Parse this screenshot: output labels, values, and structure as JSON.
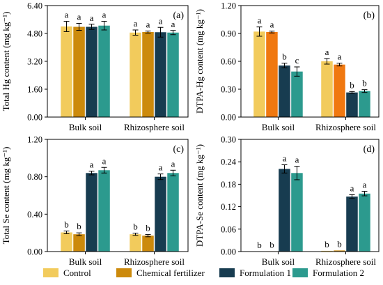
{
  "colors": {
    "Control": "#f2cb5c",
    "Chemical fertilizer": "#cc8a0c",
    "Formulation 1": "#173c50",
    "Formulation 2": "#2c9a8e",
    "Chemical fertilizer (b)": "#f07810"
  },
  "legend": {
    "items": [
      "Control",
      "Chemical fertilizer",
      "Formulation 1",
      "Formulation 2"
    ]
  },
  "chart_data": [
    {
      "type": "bar",
      "panel": "(a)",
      "ylabel": "Total Hg content (mg kg⁻¹)",
      "ylim": [
        0,
        6.4
      ],
      "yticks": [
        "0.00",
        "1.60",
        "3.20",
        "4.80",
        "6.40"
      ],
      "categories": [
        "Bulk soil",
        "Rhizosphere soil"
      ],
      "series": [
        {
          "name": "Control",
          "values": [
            5.2,
            4.85
          ],
          "errors": [
            0.3,
            0.15
          ],
          "letters": [
            "a",
            "a"
          ]
        },
        {
          "name": "Chemical fertilizer",
          "values": [
            5.18,
            4.88
          ],
          "errors": [
            0.2,
            0.06
          ],
          "letters": [
            "a",
            "a"
          ]
        },
        {
          "name": "Formulation 1",
          "values": [
            5.18,
            4.87
          ],
          "errors": [
            0.15,
            0.28
          ],
          "letters": [
            "a",
            "a"
          ]
        },
        {
          "name": "Formulation 2",
          "values": [
            5.25,
            4.85
          ],
          "errors": [
            0.25,
            0.12
          ],
          "letters": [
            "a",
            "a"
          ]
        }
      ]
    },
    {
      "type": "bar",
      "panel": "(b)",
      "ylabel": "DTPA-Hg content (mg kg⁻¹)",
      "ylim": [
        0,
        1.2
      ],
      "yticks": [
        "0.00",
        "0.30",
        "0.60",
        "0.90",
        "1.20"
      ],
      "categories": [
        "Bulk soil",
        "Rhizosphere soil"
      ],
      "series": [
        {
          "name": "Control",
          "values": [
            0.92,
            0.6
          ],
          "errors": [
            0.05,
            0.03
          ],
          "letters": [
            "a",
            "a"
          ]
        },
        {
          "name": "Chemical fertilizer",
          "values": [
            0.915,
            0.565
          ],
          "errors": [
            0.01,
            0.015
          ],
          "letters": [
            "a",
            "a"
          ]
        },
        {
          "name": "Formulation 1",
          "values": [
            0.555,
            0.265
          ],
          "errors": [
            0.025,
            0.01
          ],
          "letters": [
            "b",
            "b"
          ]
        },
        {
          "name": "Formulation 2",
          "values": [
            0.49,
            0.28
          ],
          "errors": [
            0.05,
            0.015
          ],
          "letters": [
            "c",
            "b"
          ]
        }
      ]
    },
    {
      "type": "bar",
      "panel": "(c)",
      "ylabel": "Total Se content (mg kg⁻¹)",
      "ylim": [
        0,
        1.2
      ],
      "yticks": [
        "0.00",
        "0.40",
        "0.80",
        "1.20"
      ],
      "categories": [
        "Bulk soil",
        "Rhizosphere soil"
      ],
      "series": [
        {
          "name": "Control",
          "values": [
            0.205,
            0.185
          ],
          "errors": [
            0.015,
            0.012
          ],
          "letters": [
            "b",
            "b"
          ]
        },
        {
          "name": "Chemical fertilizer",
          "values": [
            0.185,
            0.17
          ],
          "errors": [
            0.015,
            0.012
          ],
          "letters": [
            "b",
            "b"
          ]
        },
        {
          "name": "Formulation 1",
          "values": [
            0.84,
            0.8
          ],
          "errors": [
            0.02,
            0.03
          ],
          "letters": [
            "a",
            "a"
          ]
        },
        {
          "name": "Formulation 2",
          "values": [
            0.87,
            0.84
          ],
          "errors": [
            0.03,
            0.03
          ],
          "letters": [
            "a",
            "a"
          ]
        }
      ]
    },
    {
      "type": "bar",
      "panel": "(d)",
      "ylabel": "DTPA-Se content (mg kg⁻¹)",
      "ylim": [
        0,
        0.3
      ],
      "yticks": [
        "0.00",
        "0.06",
        "0.12",
        "0.18",
        "0.24",
        "0.30"
      ],
      "categories": [
        "Bulk soil",
        "Rhizosphere soil"
      ],
      "series": [
        {
          "name": "Control",
          "values": [
            0.0,
            0.002
          ],
          "errors": [
            0,
            0
          ],
          "letters": [
            "b",
            "b"
          ]
        },
        {
          "name": "Chemical fertilizer",
          "values": [
            0.001,
            0.003
          ],
          "errors": [
            0,
            0
          ],
          "letters": [
            "b",
            "b"
          ]
        },
        {
          "name": "Formulation 1",
          "values": [
            0.221,
            0.147
          ],
          "errors": [
            0.011,
            0.005
          ],
          "letters": [
            "a",
            "a"
          ]
        },
        {
          "name": "Formulation 2",
          "values": [
            0.21,
            0.155
          ],
          "errors": [
            0.018,
            0.006
          ],
          "letters": [
            "a",
            "a"
          ]
        }
      ]
    }
  ]
}
